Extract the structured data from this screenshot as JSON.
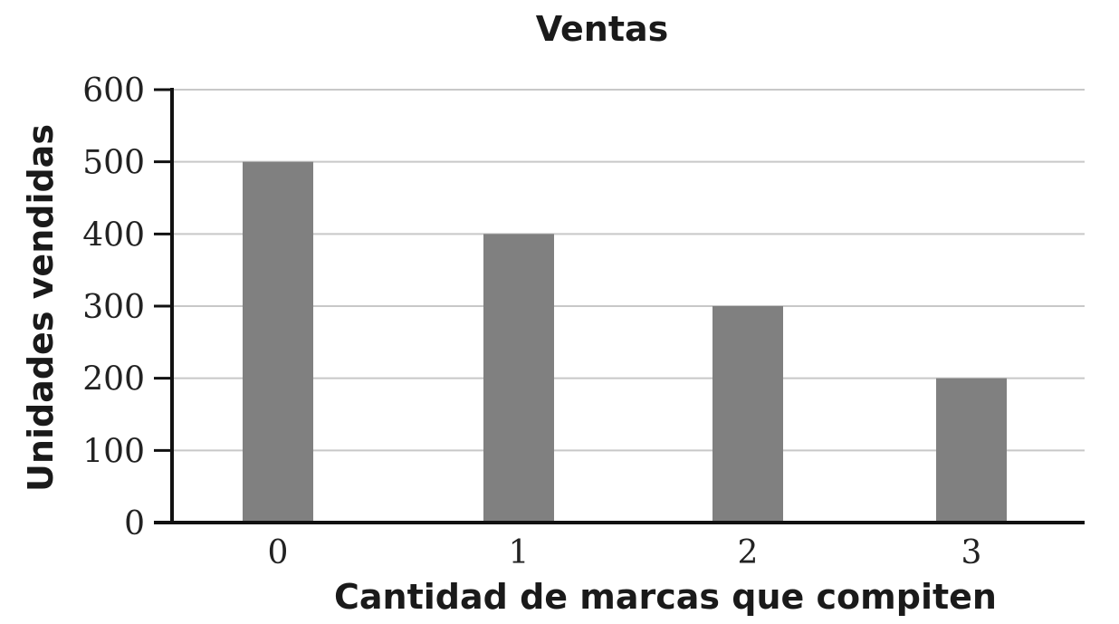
{
  "chart_data": {
    "type": "bar",
    "title": "Ventas",
    "xlabel": "Cantidad de marcas que compiten",
    "ylabel": "Unidades vendidas",
    "categories": [
      "0",
      "1",
      "2",
      "3"
    ],
    "values": [
      500,
      400,
      300,
      200
    ],
    "ylim": [
      0,
      600
    ],
    "yticks": [
      "0",
      "100",
      "200",
      "300",
      "400",
      "500",
      "600"
    ],
    "grid": true,
    "legend": "none",
    "bar_color": "#808080"
  }
}
